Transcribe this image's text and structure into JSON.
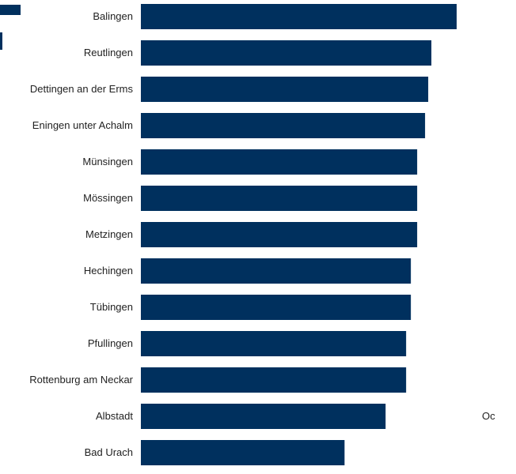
{
  "colors": {
    "bar": "#00305e"
  },
  "side_text": "Oc",
  "chart_data": {
    "type": "bar",
    "orientation": "horizontal",
    "categories": [
      "Balingen",
      "Reutlingen",
      "Dettingen an der Erms",
      "Eningen unter Achalm",
      "Münsingen",
      "Mössingen",
      "Metzingen",
      "Hechingen",
      "Tübingen",
      "Pfullingen",
      "Rottenburg am Neckar",
      "Albstadt",
      "Bad Urach"
    ],
    "values": [
      100,
      92,
      91,
      90,
      87.5,
      87.5,
      87.5,
      85.5,
      85.5,
      84,
      84,
      77.5,
      64.5
    ],
    "title": "",
    "xlabel": "",
    "ylabel": "",
    "xlim": [
      0,
      100
    ],
    "grid": false,
    "legend": "top-left"
  }
}
